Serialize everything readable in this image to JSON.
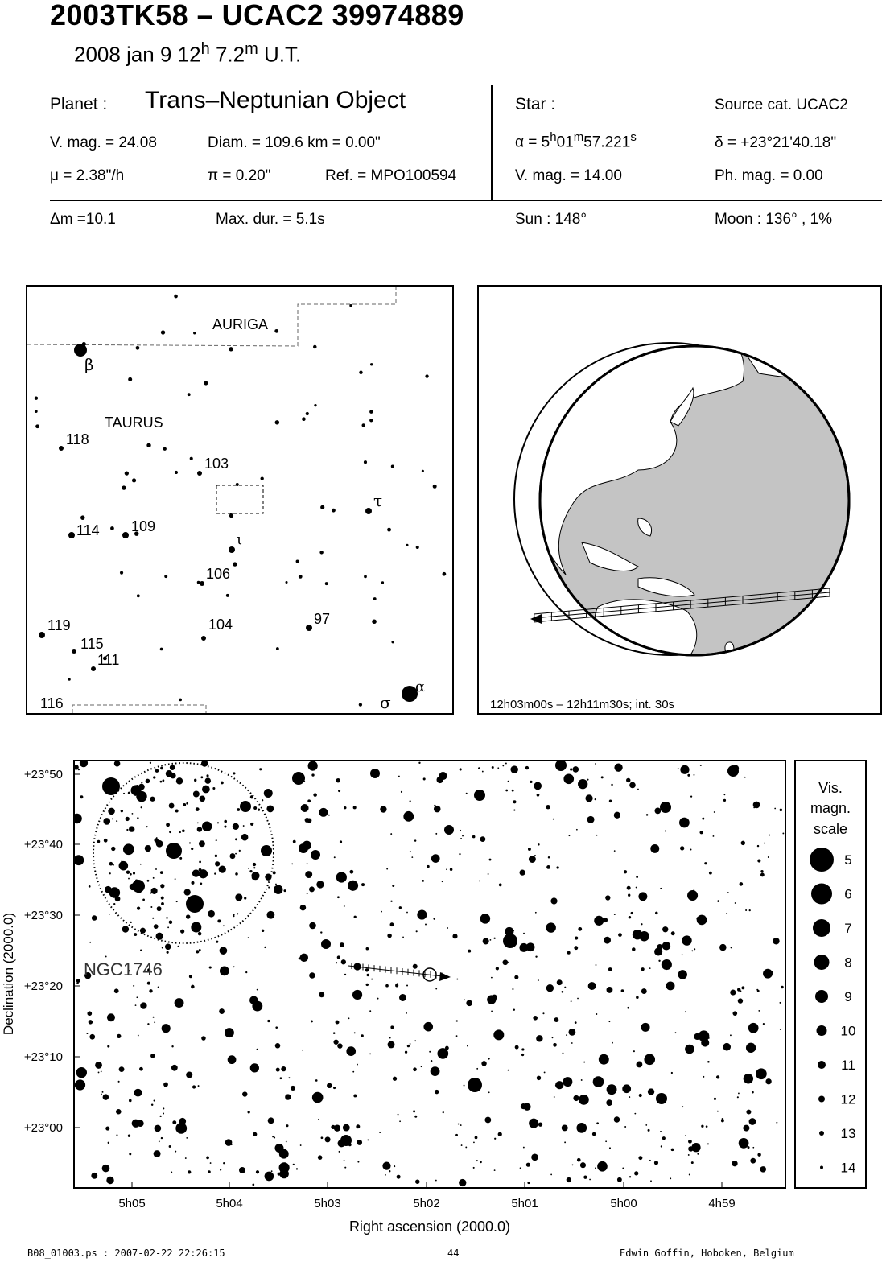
{
  "header": {
    "title": "2003TK58  –  UCAC2 39974889",
    "date": "2008 jan  9  12",
    "time_h_sup": "h",
    "time_min": " 7.2",
    "time_m_sup": "m",
    "time_ut": " U.T."
  },
  "info": {
    "planet_label": "Planet :",
    "planet_name": "Trans–Neptunian Object",
    "vmag": "V. mag. = 24.08",
    "diam": "Diam. = 109.6 km = 0.00\"",
    "mu": "μ =  2.38\"/h",
    "pi": "π =  0.20\"",
    "ref": "Ref. = MPO100594",
    "star_label": "Star :",
    "source_cat": "Source cat.  UCAC2",
    "alpha_prefix": "α =  5",
    "alpha_h": "h",
    "alpha_min": "01",
    "alpha_m": "m",
    "alpha_sec": "57.221",
    "alpha_s": "s",
    "delta": "δ = +23°21'40.18\"",
    "star_vmag": "V. mag. = 14.00",
    "ph_mag": "Ph. mag. =  0.00",
    "dm": "Δm =10.1",
    "max_dur": "Max. dur. = 5.1s",
    "sun": "Sun : 148°",
    "moon": "Moon : 136° ,  1%"
  },
  "finder_chart": {
    "constellations": [
      "AURIGA",
      "TAURUS"
    ],
    "labels": {
      "beta": "β",
      "tau": "τ",
      "iota": "ι",
      "alpha": "α",
      "sigma": "σ",
      "n118": "118",
      "n103": "103",
      "n114": "114",
      "n109": "109",
      "n106": "106",
      "n104": "104",
      "n97": "97",
      "n119": "119",
      "n115": "115",
      "n111": "111",
      "n116": "116"
    }
  },
  "globe": {
    "caption": "12h03m00s – 12h11m30s; int. 30s"
  },
  "star_chart": {
    "y_ticks": [
      "+23°50",
      "+23°40",
      "+23°30",
      "+23°20",
      "+23°10",
      "+23°00"
    ],
    "x_ticks": [
      "5h05",
      "5h04",
      "5h03",
      "5h02",
      "5h01",
      "5h00",
      "4h59"
    ],
    "y_label": "Declination (2000.0)",
    "x_label": "Right ascension (2000.0)",
    "cluster_label": "NGC1746"
  },
  "legend": {
    "title_lines": [
      "Vis.",
      "magn.",
      "scale"
    ],
    "magnitudes": [
      "5",
      "6",
      "7",
      "8",
      "9",
      "10",
      "11",
      "12",
      "13",
      "14"
    ]
  },
  "footer": {
    "file": "B08_01003.ps : 2007-02-22 22:26:15",
    "page": "44",
    "author": "Edwin Goffin, Hoboken, Belgium"
  }
}
